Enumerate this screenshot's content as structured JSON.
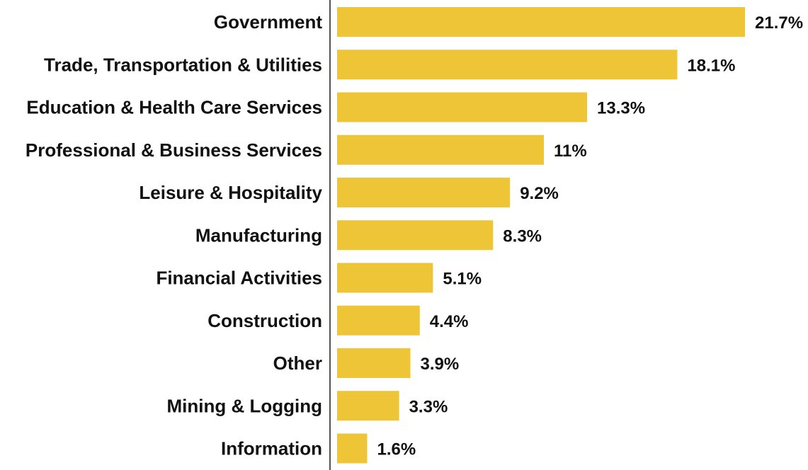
{
  "chart_data": {
    "type": "bar",
    "orientation": "horizontal",
    "categories": [
      "Government",
      "Trade, Transportation & Utilities",
      "Education & Health Care Services",
      "Professional & Business Services",
      "Leisure & Hospitality",
      "Manufacturing",
      "Financial Activities",
      "Construction",
      "Other",
      "Mining & Logging",
      "Information"
    ],
    "values": [
      21.7,
      18.1,
      13.3,
      11,
      9.2,
      8.3,
      5.1,
      4.4,
      3.9,
      3.3,
      1.6
    ],
    "value_labels": [
      "21.7%",
      "18.1%",
      "13.3%",
      "11%",
      "9.2%",
      "8.3%",
      "5.1%",
      "4.4%",
      "3.9%",
      "3.3%",
      "1.6%"
    ],
    "xlim": [
      0,
      21.7
    ],
    "grid": false,
    "legend": "none",
    "colors": {
      "bar": "#EEC537",
      "axis": "#555555",
      "text": "#111111"
    }
  }
}
